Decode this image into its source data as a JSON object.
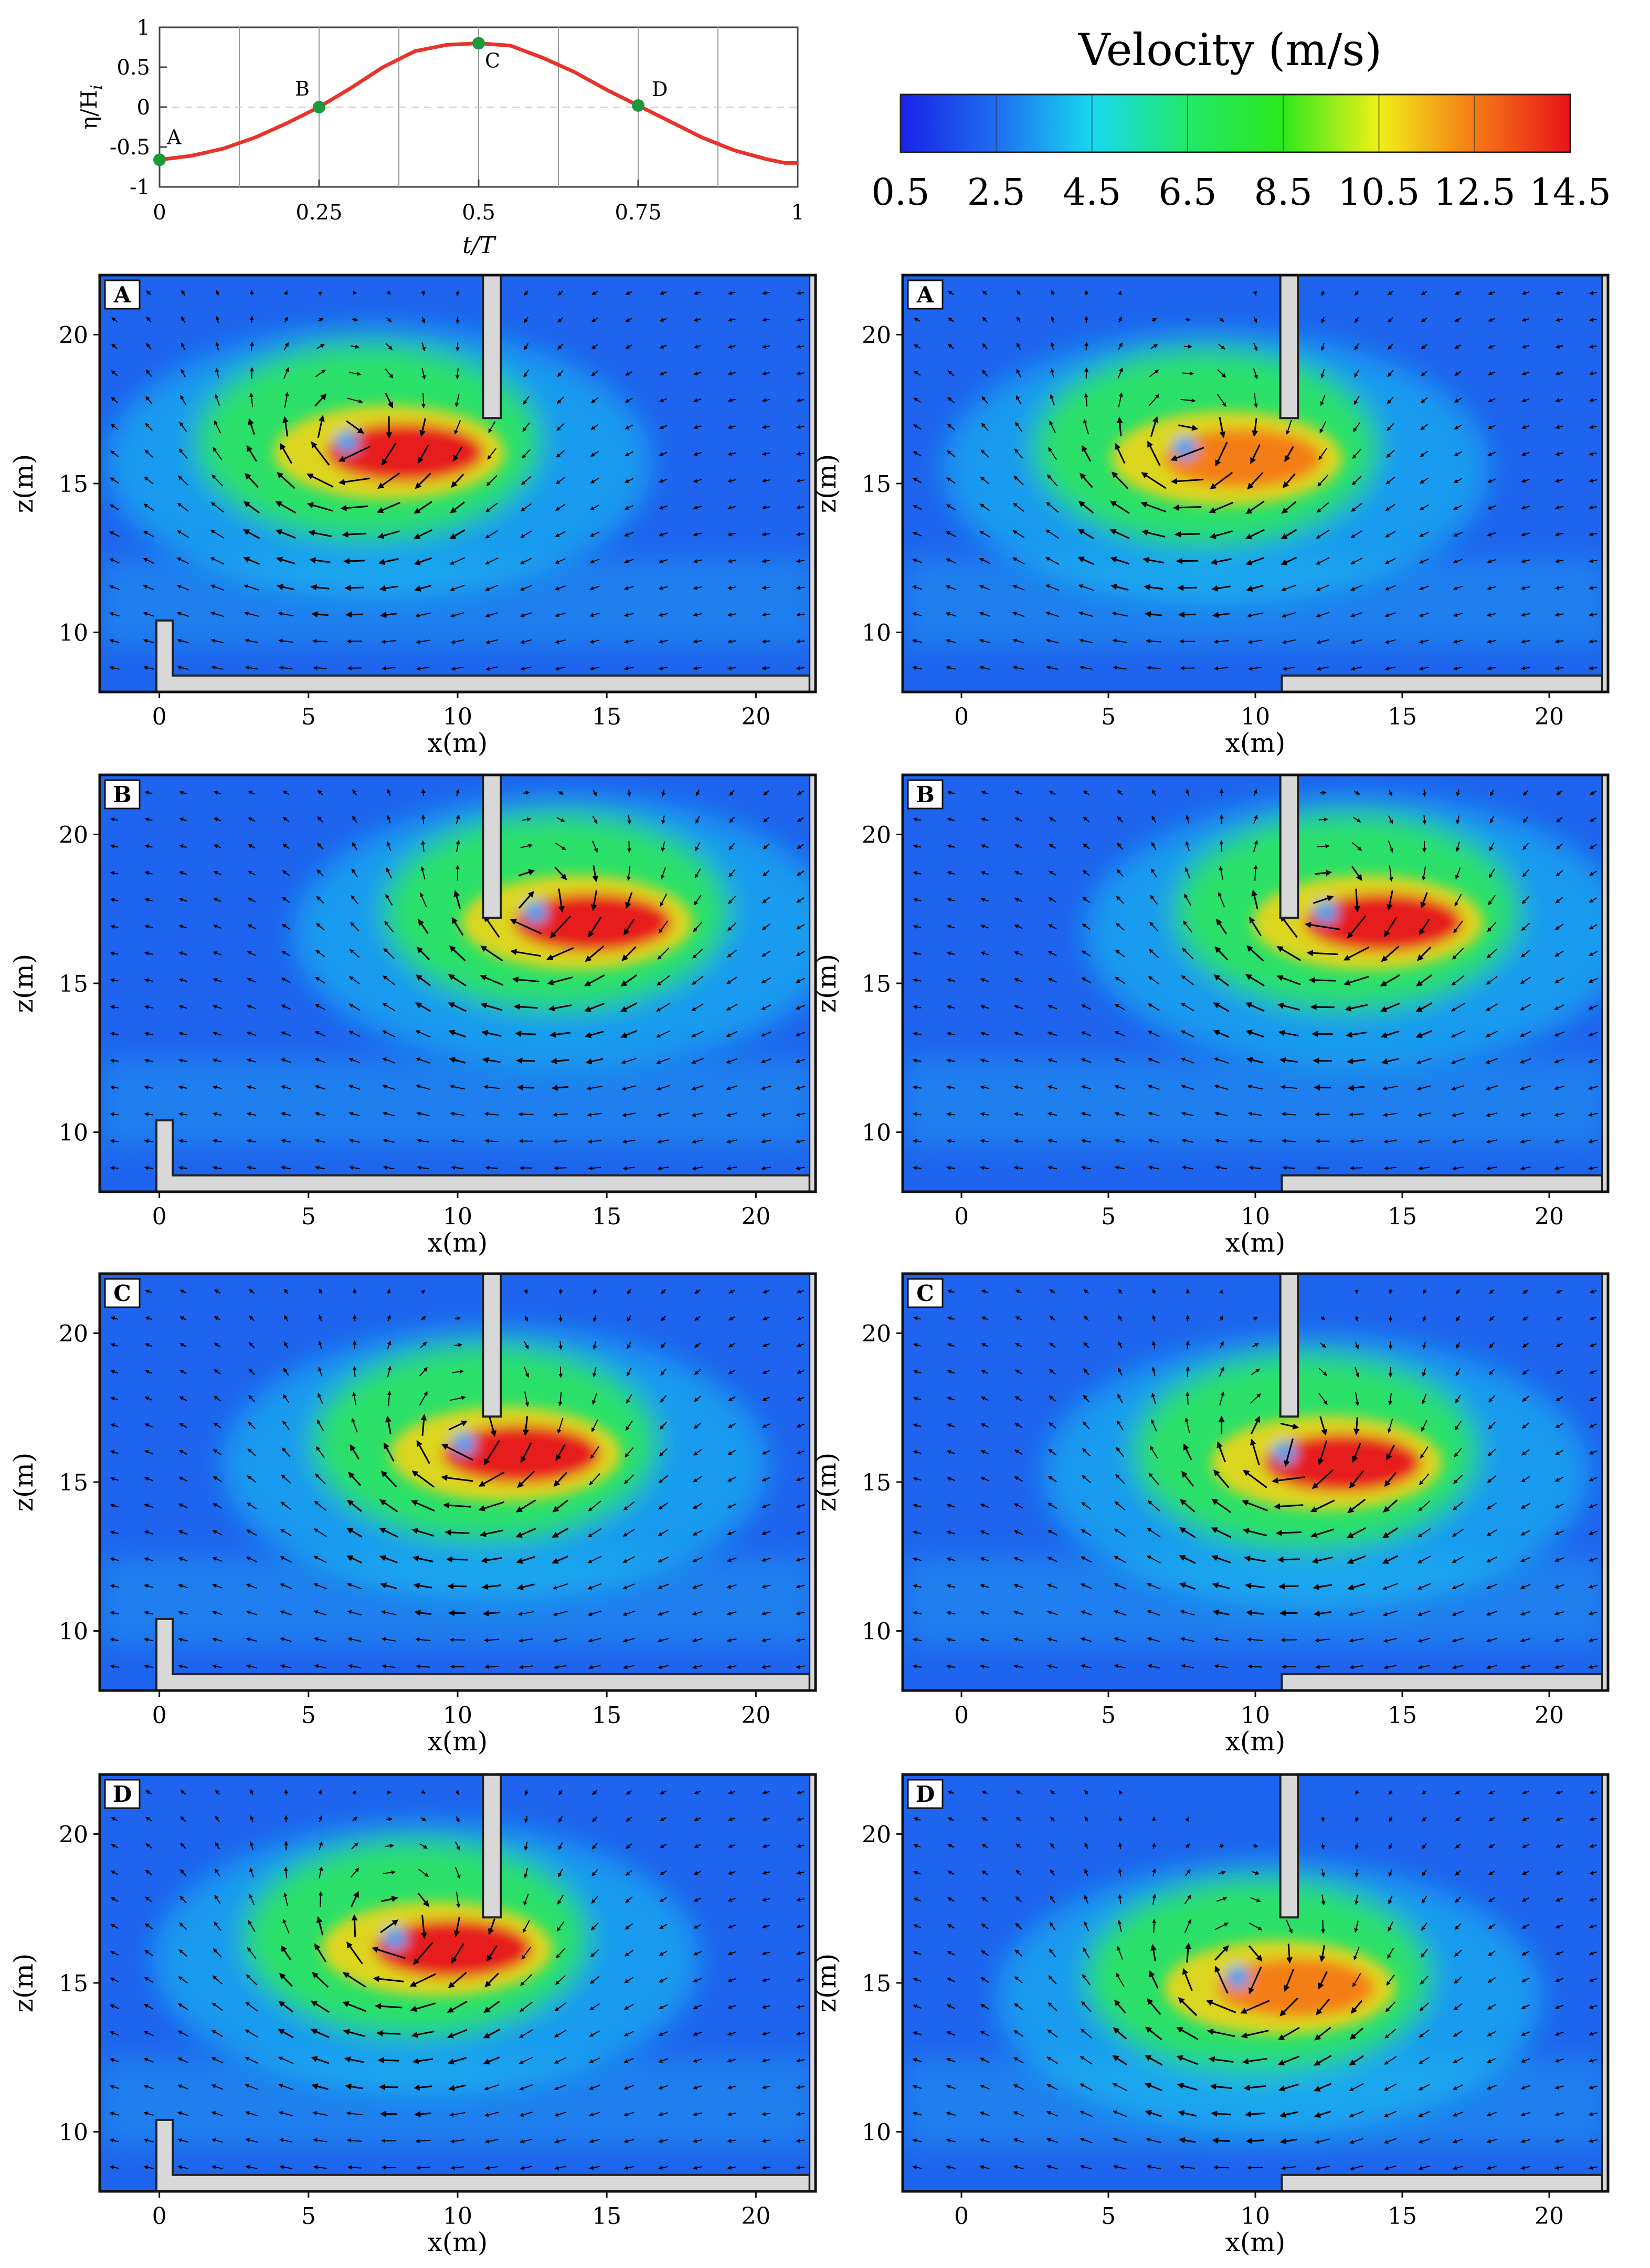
{
  "wave_chart": {
    "type": "line",
    "xlabel": "t/T",
    "ylabel": "η/H",
    "ylabel_sub": "i",
    "xlim": [
      0,
      1
    ],
    "ylim": [
      -1,
      1
    ],
    "x_ticks": [
      "0",
      "0.25",
      "0.5",
      "0.75",
      "1"
    ],
    "y_ticks": [
      "1",
      "0.5",
      "0",
      "-0.5",
      "-1"
    ],
    "grid": true,
    "line_color": "#e8322a",
    "marker_color": "#1a9a3a",
    "series": [
      {
        "values": [
          {
            "x": 0.0,
            "y": -0.66
          },
          {
            "x": 0.05,
            "y": -0.61
          },
          {
            "x": 0.1,
            "y": -0.52
          },
          {
            "x": 0.15,
            "y": -0.38
          },
          {
            "x": 0.2,
            "y": -0.2
          },
          {
            "x": 0.25,
            "y": 0.0
          },
          {
            "x": 0.3,
            "y": 0.24
          },
          {
            "x": 0.35,
            "y": 0.5
          },
          {
            "x": 0.4,
            "y": 0.7
          },
          {
            "x": 0.45,
            "y": 0.78
          },
          {
            "x": 0.5,
            "y": 0.8
          },
          {
            "x": 0.55,
            "y": 0.77
          },
          {
            "x": 0.6,
            "y": 0.62
          },
          {
            "x": 0.65,
            "y": 0.44
          },
          {
            "x": 0.7,
            "y": 0.22
          },
          {
            "x": 0.75,
            "y": 0.02
          },
          {
            "x": 0.8,
            "y": -0.18
          },
          {
            "x": 0.85,
            "y": -0.38
          },
          {
            "x": 0.9,
            "y": -0.54
          },
          {
            "x": 0.95,
            "y": -0.65
          },
          {
            "x": 0.98,
            "y": -0.7
          },
          {
            "x": 1.0,
            "y": -0.7
          }
        ]
      }
    ],
    "points": [
      {
        "label": "A",
        "x": 0.0,
        "y": -0.66
      },
      {
        "label": "B",
        "x": 0.25,
        "y": 0.0
      },
      {
        "label": "C",
        "x": 0.5,
        "y": 0.8
      },
      {
        "label": "D",
        "x": 0.75,
        "y": 0.02
      }
    ]
  },
  "colorbar": {
    "title": "Velocity (m/s)",
    "ticks": [
      "0.5",
      "2.5",
      "4.5",
      "6.5",
      "8.5",
      "10.5",
      "12.5",
      "14.5"
    ],
    "range": [
      0.5,
      14.5
    ],
    "colors": [
      "#1a22e6",
      "#1e6ef0",
      "#18d8f0",
      "#22e86a",
      "#2ee81c",
      "#f0f018",
      "#f57a16",
      "#e8141a"
    ]
  },
  "chart_data": [
    {
      "type": "heatmap",
      "panel": "A",
      "column": "left",
      "xlabel": "x(m)",
      "ylabel": "z(m)",
      "xlim": [
        -2,
        22
      ],
      "ylim": [
        8,
        22
      ],
      "x_ticks": [
        "0",
        "5",
        "10",
        "15",
        "20"
      ],
      "y_ticks": [
        "10",
        "15",
        "20"
      ],
      "max_velocity": 13.5,
      "vortex_center": [
        6.3,
        16.4
      ]
    },
    {
      "type": "heatmap",
      "panel": "A",
      "column": "right",
      "xlabel": "x(m)",
      "ylabel": "z(m)",
      "xlim": [
        -2,
        22
      ],
      "ylim": [
        8,
        22
      ],
      "x_ticks": [
        "0",
        "5",
        "10",
        "15",
        "20"
      ],
      "y_ticks": [
        "10",
        "15",
        "20"
      ],
      "max_velocity": 13.0,
      "vortex_center": [
        7.6,
        16.2
      ]
    },
    {
      "type": "heatmap",
      "panel": "B",
      "column": "left",
      "xlabel": "x(m)",
      "ylabel": "z(m)",
      "xlim": [
        -2,
        22
      ],
      "ylim": [
        8,
        22
      ],
      "x_ticks": [
        "0",
        "5",
        "10",
        "15",
        "20"
      ],
      "y_ticks": [
        "10",
        "15",
        "20"
      ],
      "max_velocity": 14.5,
      "vortex_center": [
        12.6,
        17.4
      ]
    },
    {
      "type": "heatmap",
      "panel": "B",
      "column": "right",
      "xlabel": "x(m)",
      "ylabel": "z(m)",
      "xlim": [
        -2,
        22
      ],
      "ylim": [
        8,
        22
      ],
      "x_ticks": [
        "0",
        "5",
        "10",
        "15",
        "20"
      ],
      "y_ticks": [
        "10",
        "15",
        "20"
      ],
      "max_velocity": 14.0,
      "vortex_center": [
        12.4,
        17.4
      ]
    },
    {
      "type": "heatmap",
      "panel": "C",
      "column": "left",
      "xlabel": "x(m)",
      "ylabel": "z(m)",
      "xlim": [
        -2,
        22
      ],
      "ylim": [
        8,
        22
      ],
      "x_ticks": [
        "0",
        "5",
        "10",
        "15",
        "20"
      ],
      "y_ticks": [
        "10",
        "15",
        "20"
      ],
      "max_velocity": 14.5,
      "vortex_center": [
        10.2,
        16.3
      ]
    },
    {
      "type": "heatmap",
      "panel": "C",
      "column": "right",
      "xlabel": "x(m)",
      "ylabel": "z(m)",
      "xlim": [
        -2,
        22
      ],
      "ylim": [
        8,
        22
      ],
      "x_ticks": [
        "0",
        "5",
        "10",
        "15",
        "20"
      ],
      "y_ticks": [
        "10",
        "15",
        "20"
      ],
      "max_velocity": 13.5,
      "vortex_center": [
        11.0,
        16.0
      ]
    },
    {
      "type": "heatmap",
      "panel": "D",
      "column": "left",
      "xlabel": "x(m)",
      "ylabel": "z(m)",
      "xlim": [
        -2,
        22
      ],
      "ylim": [
        8,
        22
      ],
      "x_ticks": [
        "0",
        "5",
        "10",
        "15",
        "20"
      ],
      "y_ticks": [
        "10",
        "15",
        "20"
      ],
      "max_velocity": 14.5,
      "vortex_center": [
        7.9,
        16.5
      ]
    },
    {
      "type": "heatmap",
      "panel": "D",
      "column": "right",
      "xlabel": "x(m)",
      "ylabel": "z(m)",
      "xlim": [
        -2,
        22
      ],
      "ylim": [
        8,
        22
      ],
      "x_ticks": [
        "0",
        "5",
        "10",
        "15",
        "20"
      ],
      "y_ticks": [
        "10",
        "15",
        "20"
      ],
      "max_velocity": 13.0,
      "vortex_center": [
        9.4,
        15.2
      ]
    }
  ]
}
